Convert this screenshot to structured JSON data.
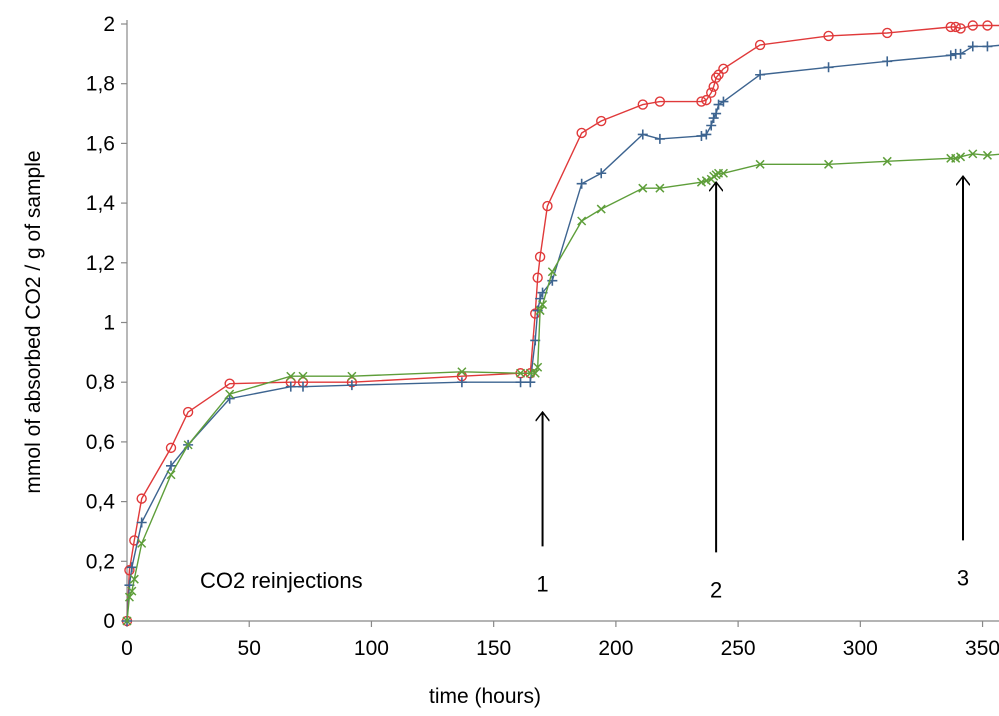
{
  "chart_data": {
    "type": "line",
    "xlabel": "time (hours)",
    "ylabel": "mmol of absorbed CO2 / g of sample",
    "xlim": [
      0,
      360
    ],
    "ylim": [
      0,
      2
    ],
    "x_ticks": [
      0,
      50,
      100,
      150,
      200,
      250,
      300,
      350
    ],
    "y_ticks": [
      "0",
      "0,2",
      "0,4",
      "0,6",
      "0,8",
      "1",
      "1,2",
      "1,4",
      "1,6",
      "1,8",
      "2"
    ],
    "grid": false,
    "legend": "none",
    "series": [
      {
        "marker": "circle",
        "color": "#e0393a",
        "points": [
          [
            0,
            0
          ],
          [
            1,
            0.17
          ],
          [
            3,
            0.27
          ],
          [
            6,
            0.41
          ],
          [
            18,
            0.58
          ],
          [
            25,
            0.7
          ],
          [
            42,
            0.795
          ],
          [
            67,
            0.8
          ],
          [
            72,
            0.8
          ],
          [
            92,
            0.8
          ],
          [
            137,
            0.82
          ],
          [
            161,
            0.83
          ],
          [
            165,
            0.83
          ],
          [
            167,
            1.03
          ],
          [
            168,
            1.15
          ],
          [
            169,
            1.22
          ],
          [
            172,
            1.39
          ],
          [
            186,
            1.635
          ],
          [
            194,
            1.675
          ],
          [
            211,
            1.73
          ],
          [
            218,
            1.74
          ],
          [
            235,
            1.74
          ],
          [
            237,
            1.745
          ],
          [
            239,
            1.77
          ],
          [
            240,
            1.79
          ],
          [
            241,
            1.82
          ],
          [
            242,
            1.83
          ],
          [
            244,
            1.85
          ],
          [
            259,
            1.93
          ],
          [
            287,
            1.96
          ],
          [
            311,
            1.97
          ],
          [
            337,
            1.99
          ],
          [
            339,
            1.99
          ],
          [
            341,
            1.985
          ],
          [
            346,
            1.995
          ],
          [
            352,
            1.995
          ],
          [
            359,
            1.995
          ]
        ]
      },
      {
        "marker": "plus",
        "color": "#3d6490",
        "points": [
          [
            0,
            0
          ],
          [
            1,
            0.12
          ],
          [
            2,
            0.18
          ],
          [
            6,
            0.33
          ],
          [
            18,
            0.52
          ],
          [
            25,
            0.59
          ],
          [
            42,
            0.745
          ],
          [
            67,
            0.785
          ],
          [
            72,
            0.785
          ],
          [
            92,
            0.79
          ],
          [
            137,
            0.8
          ],
          [
            161,
            0.8
          ],
          [
            165,
            0.8
          ],
          [
            167,
            0.94
          ],
          [
            168,
            1.04
          ],
          [
            169,
            1.08
          ],
          [
            170,
            1.1
          ],
          [
            174,
            1.14
          ],
          [
            186,
            1.465
          ],
          [
            194,
            1.5
          ],
          [
            211,
            1.63
          ],
          [
            218,
            1.615
          ],
          [
            235,
            1.625
          ],
          [
            237,
            1.63
          ],
          [
            239,
            1.66
          ],
          [
            240,
            1.685
          ],
          [
            241,
            1.7
          ],
          [
            242,
            1.73
          ],
          [
            244,
            1.74
          ],
          [
            259,
            1.83
          ],
          [
            287,
            1.855
          ],
          [
            311,
            1.875
          ],
          [
            337,
            1.895
          ],
          [
            339,
            1.9
          ],
          [
            341,
            1.9
          ],
          [
            346,
            1.925
          ],
          [
            352,
            1.925
          ],
          [
            359,
            1.93
          ]
        ]
      },
      {
        "marker": "cross",
        "color": "#5e9e3a",
        "points": [
          [
            0,
            0
          ],
          [
            1,
            0.08
          ],
          [
            2,
            0.1
          ],
          [
            3,
            0.14
          ],
          [
            6,
            0.26
          ],
          [
            18,
            0.49
          ],
          [
            25,
            0.59
          ],
          [
            42,
            0.76
          ],
          [
            67,
            0.82
          ],
          [
            72,
            0.82
          ],
          [
            92,
            0.82
          ],
          [
            137,
            0.835
          ],
          [
            161,
            0.83
          ],
          [
            165,
            0.83
          ],
          [
            167,
            0.83
          ],
          [
            168,
            0.85
          ],
          [
            169,
            1.04
          ],
          [
            170,
            1.06
          ],
          [
            174,
            1.17
          ],
          [
            186,
            1.34
          ],
          [
            194,
            1.38
          ],
          [
            211,
            1.45
          ],
          [
            218,
            1.45
          ],
          [
            235,
            1.47
          ],
          [
            237,
            1.475
          ],
          [
            239,
            1.48
          ],
          [
            240,
            1.49
          ],
          [
            241,
            1.495
          ],
          [
            242,
            1.5
          ],
          [
            244,
            1.5
          ],
          [
            259,
            1.53
          ],
          [
            287,
            1.53
          ],
          [
            311,
            1.54
          ],
          [
            337,
            1.55
          ],
          [
            339,
            1.55
          ],
          [
            341,
            1.555
          ],
          [
            346,
            1.565
          ],
          [
            352,
            1.56
          ],
          [
            359,
            1.565
          ]
        ]
      }
    ],
    "annotations": {
      "caption": "CO2  reinjections",
      "arrows": [
        {
          "label": "1",
          "x": 170,
          "y_from": 0.25,
          "y_to": 0.7
        },
        {
          "label": "2",
          "x": 241,
          "y_from": 0.23,
          "y_to": 1.47
        },
        {
          "label": "3",
          "x": 342,
          "y_from": 0.27,
          "y_to": 1.49
        }
      ]
    }
  }
}
